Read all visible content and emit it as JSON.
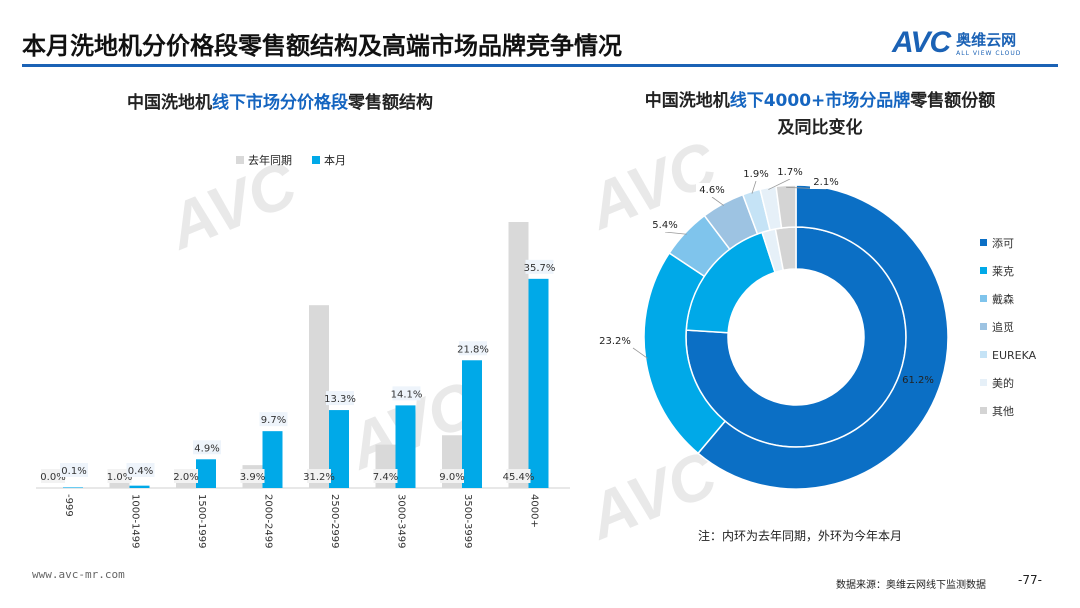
{
  "header": {
    "title": "本月洗地机分价格段零售额结构及高端市场品牌竞争情况",
    "logo_mark": "AVC",
    "logo_cn": "奥维云网",
    "logo_en": "ALL VIEW CLOUD"
  },
  "left": {
    "title_pre": "中国洗地机",
    "title_hl": "线下市场分价格段",
    "title_post": "零售额结构"
  },
  "right": {
    "title_pre": "中国洗地机",
    "title_hl": "线下4000+市场分品牌",
    "title_post": "零售额份额",
    "title_line2": "及同比变化",
    "note": "注：内环为去年同期，外环为今年本月"
  },
  "colors": {
    "prev": "#d9d9d9",
    "cur": "#00a9e8",
    "accent": "#1b62b5"
  },
  "chart_data": [
    {
      "type": "bar",
      "categories": [
        "-999",
        "1000-1499",
        "1500-1999",
        "2000-2499",
        "2500-2999",
        "3000-3499",
        "3500-3999",
        "4000+"
      ],
      "series": [
        {
          "name": "去年同期",
          "values": [
            0.0,
            1.0,
            2.0,
            3.9,
            31.2,
            7.4,
            9.0,
            45.4
          ],
          "labels": [
            "0.0%",
            "1.0%",
            "2.0%",
            "3.9%",
            "31.2%",
            "7.4%",
            "9.0%",
            "45.4%"
          ]
        },
        {
          "name": "本月",
          "values": [
            0.1,
            0.4,
            4.9,
            9.7,
            13.3,
            14.1,
            21.8,
            35.7
          ],
          "labels": [
            "0.1%",
            "0.4%",
            "4.9%",
            "9.7%",
            "13.3%",
            "14.1%",
            "21.8%",
            "35.7%"
          ]
        }
      ],
      "ylim": [
        0,
        50
      ],
      "legend": "top"
    },
    {
      "type": "pie",
      "categories": [
        "添可",
        "莱克",
        "戴森",
        "追觅",
        "EUREKA",
        "美的",
        "其他"
      ],
      "colors": [
        "#0b6fc5",
        "#00a9e8",
        "#7fc4ec",
        "#9dc3e2",
        "#c5e3f6",
        "#e6f0f8",
        "#d4d4d4"
      ],
      "outer_ring": [
        61.2,
        23.2,
        5.4,
        4.6,
        1.9,
        1.7,
        2.1
      ],
      "outer_labels": [
        "61.2%",
        "23.2%",
        "5.4%",
        "4.6%",
        "1.9%",
        "1.7%",
        "2.1%"
      ],
      "inner_ring": [
        76.0,
        19.0,
        0,
        0,
        0,
        2.0,
        3.0
      ],
      "legend": "right"
    }
  ],
  "footer": {
    "url": "www.avc-mr.com",
    "source": "数据来源：奥维云网线下监测数据",
    "page": "-77-"
  }
}
